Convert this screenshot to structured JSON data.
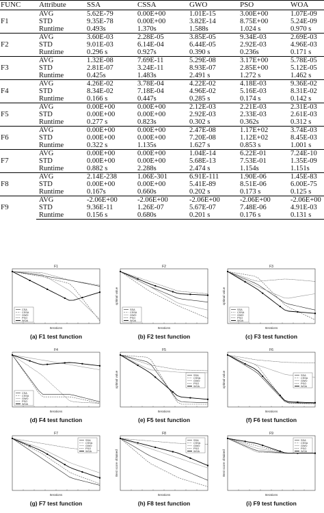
{
  "table": {
    "headers": [
      "FUNC",
      "Attribute",
      "SSA",
      "CSSA",
      "GWO",
      "PSO",
      "WOA"
    ],
    "rows": [
      {
        "func": "F1",
        "stats": [
          [
            "AVG",
            "5.62E-79",
            "0.00E+00",
            "1.01E-15",
            "3.00E+00",
            "1.07E-09"
          ],
          [
            "STD",
            "9.35E-78",
            "0.00E+00",
            "3.82E-14",
            "8.75E+00",
            "5.24E-09"
          ],
          [
            "Runtime",
            "0.493s",
            "1.370s",
            "1.588s",
            "1.024 s",
            "0.970 s"
          ]
        ]
      },
      {
        "func": "F2",
        "stats": [
          [
            "AVG",
            "3.60E-03",
            "2.28E-05",
            "3.85E-05",
            "9.34E-03",
            "2.69E-03"
          ],
          [
            "STD",
            "9.01E-03",
            "6.14E-04",
            "6.44E-05",
            "2.92E-03",
            "4.96E-03"
          ],
          [
            "Runtime",
            "0.296 s",
            "0.927s",
            "0.390 s",
            "0.236s",
            "0.171 s"
          ]
        ]
      },
      {
        "func": "F3",
        "stats": [
          [
            "AVG",
            "1.32E-08",
            "7.69E-11",
            "5.29E-08",
            "3.17E+00",
            "5.78E-05"
          ],
          [
            "STD",
            "2.81E-07",
            "3.24E-11",
            "8.93E-07",
            "2.85E+00",
            "5.12E-05"
          ],
          [
            "Runtime",
            "0.425s",
            "1.483s",
            "2.491 s",
            "1.272 s",
            "1.462 s"
          ]
        ]
      },
      {
        "func": "F4",
        "stats": [
          [
            "AVG",
            "4.26E-02",
            "3.78E-04",
            "4.22E-02",
            "4.18E-03",
            "9.36E-02"
          ],
          [
            "STD",
            "8.34E-02",
            "7.18E-04",
            "4.96E-02",
            "5.16E-03",
            "8.31E-02"
          ],
          [
            "Runtime",
            "0.166 s",
            "0.447s",
            "0.285 s",
            "0.174 s",
            "0.142 s"
          ]
        ]
      },
      {
        "func": "F5",
        "stats": [
          [
            "AVG",
            "0.00E+00",
            "0.00E+00",
            "2.12E-03",
            "2.21E-03",
            "2.31E-03"
          ],
          [
            "STD",
            "0.00E+00",
            "0.00E+00",
            "2.92E-03",
            "2.33E-03",
            "2.61E-03"
          ],
          [
            "Runtime",
            "0.277 s",
            "0.823s",
            "0.302 s",
            "0.362s",
            "0.312 s"
          ]
        ]
      },
      {
        "func": "F6",
        "stats": [
          [
            "AVG",
            "0.00E+00",
            "0.00E+00",
            "2.47E-08",
            "1.17E+02",
            "3.74E-03"
          ],
          [
            "STD",
            "0.00E+00",
            "0.00E+00",
            "7.20E-08",
            "1.12E+02",
            "8.45E-03"
          ],
          [
            "Runtime",
            "0.322 s",
            "1.135s",
            "1.627 s",
            "0.853 s",
            "1.001 s"
          ]
        ]
      },
      {
        "func": "F7",
        "stats": [
          [
            "AVG",
            "0.00E+00",
            "0.00E+00",
            "1.04E-14",
            "6.22E-01",
            "7.24E-10"
          ],
          [
            "STD",
            "0.00E+00",
            "0.00E+00",
            "5.68E-13",
            "7.53E-01",
            "1.35E-09"
          ],
          [
            "Runtime",
            "0.882 s",
            "2.288s",
            "2.474 s",
            "1.154s",
            "1.151s"
          ]
        ]
      },
      {
        "func": "F8",
        "stats": [
          [
            "AVG",
            "2.14E-238",
            "1.06E-301",
            "6.91E-111",
            "1.90E-06",
            "1.45E-83"
          ],
          [
            "STD",
            "0.00E+00",
            "0.00E+00",
            "5.41E-89",
            "8.51E-06",
            "6.00E-75"
          ],
          [
            "Runtime",
            "0.167s",
            "0.660s",
            "0.202 s",
            "0.173 s",
            "0.125 s"
          ]
        ]
      },
      {
        "func": "F9",
        "stats": [
          [
            "AVG",
            "-2.06E+00",
            "-2.06E+00",
            "-2.06E+00",
            "-2.06E+00",
            "-2.06E+00"
          ],
          [
            "STD",
            "9.36E-11",
            "1.26E-07",
            "5.67E-07",
            "7.48E-06",
            "4.91E-03"
          ],
          [
            "Runtime",
            "0.156 s",
            "0.680s",
            "0.201 s",
            "0.176 s",
            "0.131 s"
          ]
        ]
      }
    ]
  },
  "figures": {
    "axis_x_label": "Iterations",
    "panels": [
      {
        "title": "F1",
        "caption": "(a) F1 test function",
        "ylabel": "",
        "legend": [
          "CSA",
          "CSSA",
          "GWO",
          "PSO",
          "WOA"
        ],
        "legend_pos": "bottom-left"
      },
      {
        "title": "F2",
        "caption": "(b) F2 test function",
        "ylabel": "optimal value",
        "legend": [
          "SSA",
          "CSSA",
          "GWO",
          "PSO",
          "WOA"
        ],
        "legend_pos": "bottom-left"
      },
      {
        "title": "F3",
        "caption": "(c) F3 test function",
        "ylabel": "optimal value",
        "legend": [
          "SSA",
          "CSSA",
          "GWO",
          "PSO",
          "WOA"
        ],
        "legend_pos": "bottom-left"
      },
      {
        "title": "F4",
        "caption": "(d) F4 test function",
        "ylabel": "",
        "legend": [
          "CSA",
          "CSSA",
          "GWO",
          "PSO",
          "WOA"
        ],
        "legend_pos": "bottom-left"
      },
      {
        "title": "F5",
        "caption": "(e) F5 test function",
        "ylabel": "optimal value",
        "legend": [
          "SSA",
          "CSSA",
          "GWO",
          "PSO",
          "WOA"
        ],
        "legend_pos": "right"
      },
      {
        "title": "F6",
        "caption": "(f) F6 test function",
        "ylabel": "optimal value",
        "legend": [
          "SSA",
          "CSSA",
          "GWO",
          "PSO",
          "WOA"
        ],
        "legend_pos": "right"
      },
      {
        "title": "F7",
        "caption": "(g) F7 test function",
        "ylabel": "",
        "legend": [
          "SSA",
          "CSSA",
          "GWO",
          "PSO",
          "WOA"
        ],
        "legend_pos": "top-right"
      },
      {
        "title": "F8",
        "caption": "(h) F8 test function",
        "ylabel": "Best score obtained",
        "legend": [
          "SSA",
          "CSSA",
          "GWO",
          "PSO",
          "WOA"
        ],
        "legend_pos": "top-right"
      },
      {
        "title": "F9",
        "caption": "(i) F9 test function",
        "ylabel": "Best score obtained",
        "legend": [
          "SSA",
          "CSSA",
          "GWO",
          "PSO",
          "WOA"
        ],
        "legend_pos": "top-right"
      }
    ]
  }
}
